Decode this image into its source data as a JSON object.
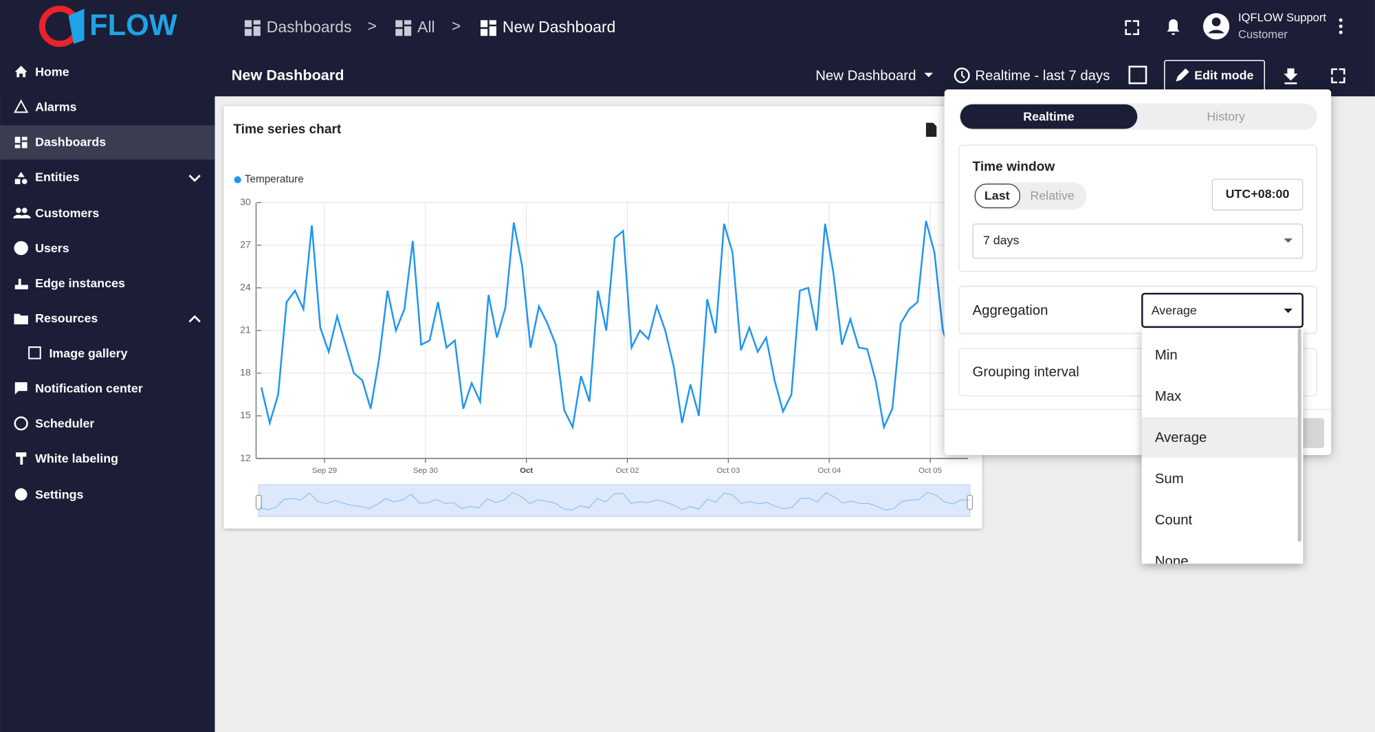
{
  "header": {
    "logo": "FLOW",
    "breadcrumbs": [
      "Dashboards",
      "All",
      "New Dashboard"
    ],
    "separator": ">",
    "user_name": "IQFLOW Support",
    "user_role": "Customer"
  },
  "sidebar": [
    "Home",
    "Alarms",
    "Dashboards",
    "Entities",
    "Customers",
    "Users",
    "Edge instances",
    "Resources",
    "Image gallery",
    "Notification center",
    "Scheduler",
    "White labeling",
    "Settings"
  ],
  "toolbar": {
    "title": "New Dashboard",
    "state": "New Dashboard",
    "timewindow": "Realtime - last 7 days",
    "edit": "Edit mode"
  },
  "timewindow_panel": {
    "tabs": [
      "Realtime",
      "History"
    ],
    "time_window_label": "Time window",
    "modes": [
      "Last",
      "Relative"
    ],
    "timezone": "UTC+08:00",
    "duration": "7 days",
    "aggregation_label": "Aggregation",
    "aggregation_value": "Average",
    "grouping_label": "Grouping interval",
    "options": [
      "Min",
      "Max",
      "Average",
      "Sum",
      "Count",
      "None"
    ]
  },
  "chart_data": {
    "type": "line",
    "title": "Time series chart",
    "x": [
      0,
      2,
      4,
      6,
      8,
      10,
      12,
      14,
      16,
      18,
      20,
      22,
      24,
      26,
      28,
      30,
      32,
      34,
      36,
      38,
      40,
      42,
      44,
      46,
      48,
      50,
      52,
      54,
      56,
      58,
      60,
      62,
      64,
      66,
      68,
      70,
      72,
      74,
      76,
      78,
      80,
      82,
      84,
      86,
      88,
      90,
      92,
      94,
      96,
      98,
      100,
      102,
      104,
      106,
      108,
      110,
      112,
      114,
      116,
      118,
      120,
      122,
      124,
      126,
      128,
      130,
      132,
      134,
      136,
      138,
      140,
      142,
      144,
      146,
      148,
      150,
      152,
      154,
      156,
      158,
      160,
      162,
      164,
      166,
      168
    ],
    "series": [
      {
        "name": "Temperature",
        "color": "#2196f3",
        "values": [
          17,
          14.5,
          16.5,
          23,
          23.8,
          22.5,
          28.4,
          21.2,
          19.5,
          22,
          20,
          18,
          17.5,
          15.5,
          19,
          23.8,
          21,
          22.5,
          27.3,
          20,
          20.3,
          23,
          19.8,
          20.3,
          15.5,
          17.3,
          16,
          23.5,
          20.5,
          22.6,
          28.6,
          25.5,
          19.8,
          22.7,
          21.5,
          20,
          15.4,
          14.2,
          17.8,
          16,
          23.8,
          21,
          27.5,
          28,
          19.8,
          21,
          20.4,
          22.7,
          21,
          18.5,
          14.5,
          17.2,
          15,
          23.2,
          20.8,
          28.5,
          26.5,
          19.6,
          21.2,
          19.5,
          20.5,
          17.5,
          15.3,
          16.5,
          23.8,
          24,
          21,
          28.5,
          25,
          20,
          21.8,
          19.8,
          19.7,
          17.5,
          14.2,
          15.5,
          21.5,
          22.5,
          23,
          28.7,
          26.5,
          21,
          19.3,
          22.8,
          22.5
        ]
      }
    ],
    "xlim": [
      0,
      168
    ],
    "xticks": [
      {
        "value": 15,
        "label": "Sep 29"
      },
      {
        "value": 39,
        "label": "Sep 30"
      },
      {
        "value": 63,
        "label": "Oct"
      },
      {
        "value": 87,
        "label": "Oct 02"
      },
      {
        "value": 111,
        "label": "Oct 03"
      },
      {
        "value": 135,
        "label": "Oct 04"
      },
      {
        "value": 159,
        "label": "Oct 05"
      }
    ],
    "ylim": [
      12,
      30
    ],
    "yticks": [
      12,
      15,
      18,
      21,
      24,
      27,
      30
    ],
    "grid": true
  }
}
